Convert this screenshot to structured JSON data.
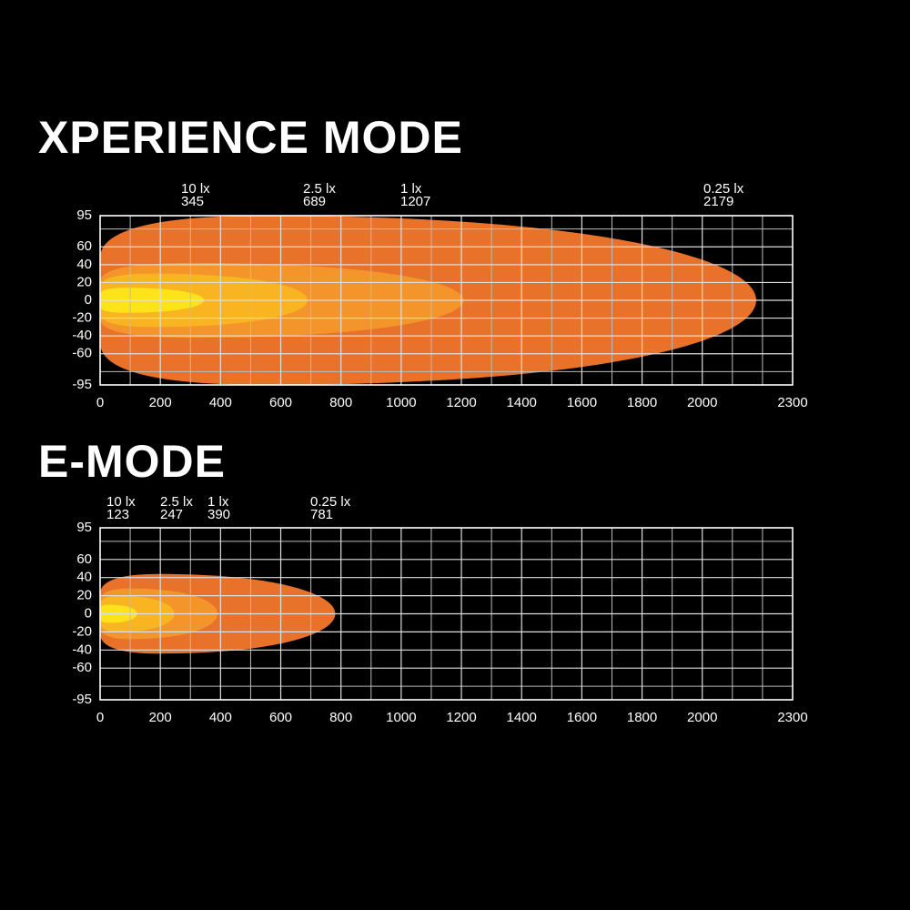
{
  "chart_data": [
    {
      "type": "isolux",
      "title": "XPERIENCE MODE",
      "contours": [
        {
          "name": "0.25 lx",
          "reach": 2179,
          "half_width": 95,
          "color": "#e8722a"
        },
        {
          "name": "1 lx",
          "reach": 1207,
          "half_width": 42,
          "color": "#f3952a"
        },
        {
          "name": "2.5 lx",
          "reach": 689,
          "half_width": 30,
          "color": "#f9b422"
        },
        {
          "name": "10 lx",
          "reach": 345,
          "half_width": 14,
          "color": "#fde41a"
        }
      ],
      "xlim": [
        0,
        2300
      ],
      "xticks": [
        0,
        200,
        400,
        600,
        800,
        1000,
        1200,
        1400,
        1600,
        1800,
        2000,
        2300
      ],
      "xgrid": [
        100,
        300,
        500,
        700,
        900,
        1100,
        1300,
        1500,
        1700,
        1900,
        2100,
        2200
      ],
      "ylim": [
        -95,
        95
      ],
      "yticks": [
        95,
        60,
        40,
        20,
        0,
        -20,
        -40,
        -60,
        -95
      ],
      "ygrid": [
        80,
        -80
      ]
    },
    {
      "type": "isolux",
      "title": "E-MODE",
      "contours": [
        {
          "name": "0.25 lx",
          "reach": 781,
          "half_width": 44,
          "color": "#e8722a"
        },
        {
          "name": "1 lx",
          "reach": 390,
          "half_width": 28,
          "color": "#f3952a"
        },
        {
          "name": "2.5 lx",
          "reach": 247,
          "half_width": 20,
          "color": "#f9b422"
        },
        {
          "name": "10 lx",
          "reach": 123,
          "half_width": 10,
          "color": "#fde41a"
        }
      ],
      "xlim": [
        0,
        2300
      ],
      "xticks": [
        0,
        200,
        400,
        600,
        800,
        1000,
        1200,
        1400,
        1600,
        1800,
        2000,
        2300
      ],
      "xgrid": [
        100,
        300,
        500,
        700,
        900,
        1100,
        1300,
        1500,
        1700,
        1900,
        2100,
        2200
      ],
      "ylim": [
        -95,
        95
      ],
      "yticks": [
        95,
        60,
        40,
        20,
        0,
        -20,
        -40,
        -60,
        -95
      ],
      "ygrid": [
        80,
        -80
      ]
    }
  ]
}
